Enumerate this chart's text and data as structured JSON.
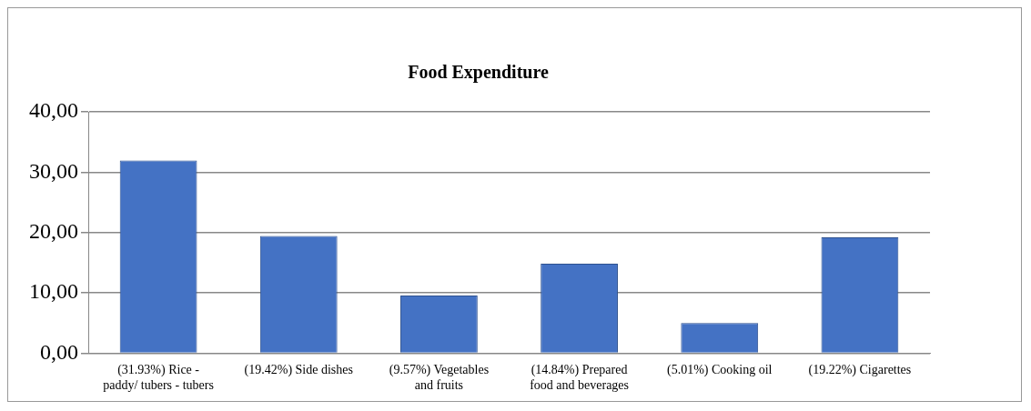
{
  "chart_data": {
    "type": "bar",
    "title": "Food Expenditure",
    "categories": [
      "(31.93%) Rice - paddy/ tubers - tubers",
      "(19.42%) Side dishes",
      "(9.57%) Vegetables and fruits",
      "(14.84%) Prepared food and beverages",
      "(5.01%) Cooking oil",
      "(19.22%) Cigarettes"
    ],
    "values": [
      31.93,
      19.42,
      9.57,
      14.84,
      5.01,
      19.22
    ],
    "color": "#4472c4",
    "ylim": [
      0,
      40
    ],
    "yticks": [
      {
        "value": 0,
        "label": "0,00"
      },
      {
        "value": 10,
        "label": "10,00"
      },
      {
        "value": 20,
        "label": "20,00"
      },
      {
        "value": 30,
        "label": "30,00"
      },
      {
        "value": 40,
        "label": "40,00"
      }
    ],
    "grid": "y"
  }
}
